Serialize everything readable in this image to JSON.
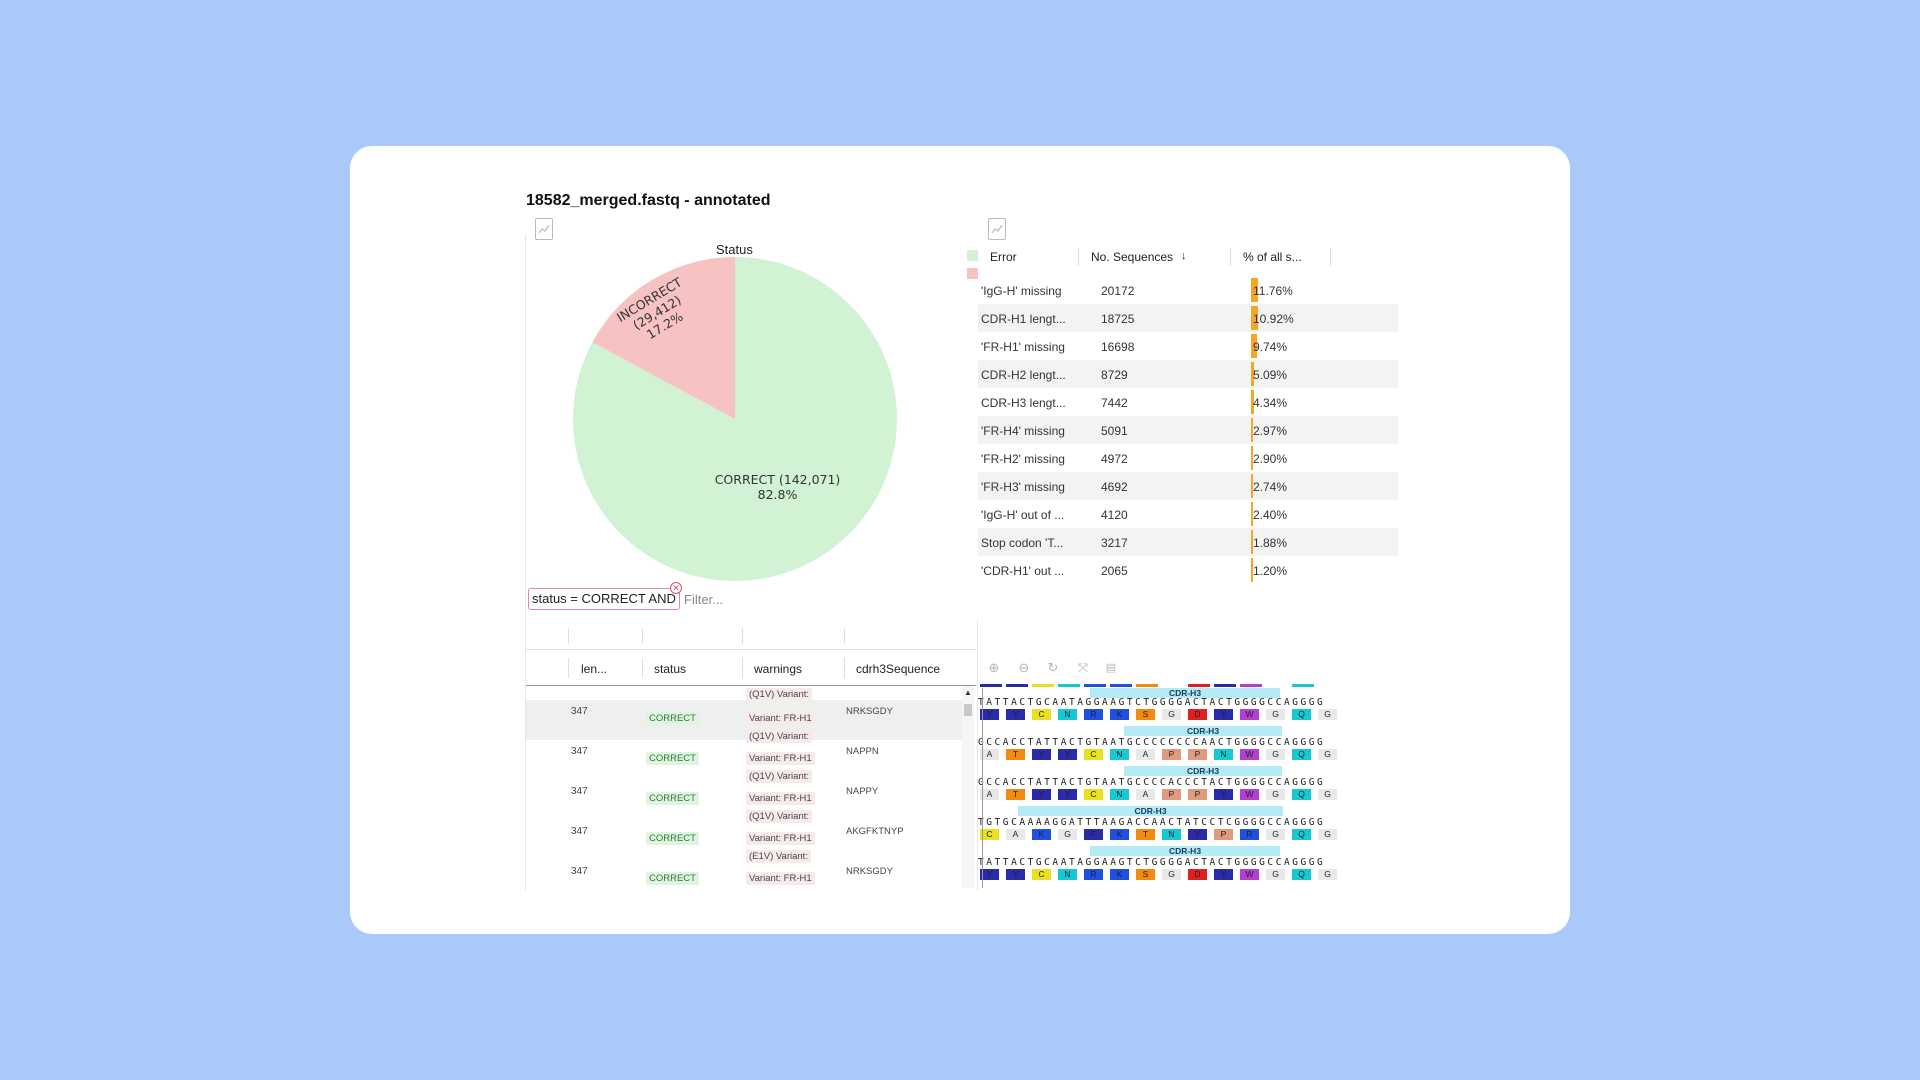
{
  "title": "18582_merged.fastq - annotated",
  "pie": {
    "title": "Status",
    "correct_label": "CORRECT (142,071)",
    "correct_pct": "82.8%",
    "incorrect_label": "INCORRECT (29,412)",
    "incorrect_pct": "17.2%",
    "correct_color": "#d2f2d4",
    "incorrect_color": "#f7c2c2"
  },
  "chart_data": {
    "type": "pie",
    "title": "Status",
    "categories": [
      "CORRECT",
      "INCORRECT"
    ],
    "values": [
      142071,
      29412
    ],
    "percentages": [
      82.8,
      17.2
    ]
  },
  "errors": {
    "headers": {
      "error": "Error",
      "count": "No. Sequences",
      "sort_icon": "↓",
      "pct": "% of all s..."
    },
    "rows": [
      {
        "error": "'IgG-H' missing",
        "count": "20172",
        "pct": "11.76%",
        "value": 11.76
      },
      {
        "error": "CDR-H1 lengt...",
        "count": "18725",
        "pct": "10.92%",
        "value": 10.92
      },
      {
        "error": "'FR-H1' missing",
        "count": "16698",
        "pct": "9.74%",
        "value": 9.74
      },
      {
        "error": "CDR-H2 lengt...",
        "count": "8729",
        "pct": "5.09%",
        "value": 5.09
      },
      {
        "error": "CDR-H3 lengt...",
        "count": "7442",
        "pct": "4.34%",
        "value": 4.34
      },
      {
        "error": "'FR-H4' missing",
        "count": "5091",
        "pct": "2.97%",
        "value": 2.97
      },
      {
        "error": "'FR-H2' missing",
        "count": "4972",
        "pct": "2.90%",
        "value": 2.9
      },
      {
        "error": "'FR-H3' missing",
        "count": "4692",
        "pct": "2.74%",
        "value": 2.74
      },
      {
        "error": "'IgG-H' out of ...",
        "count": "4120",
        "pct": "2.40%",
        "value": 2.4
      },
      {
        "error": "Stop codon 'T...",
        "count": "3217",
        "pct": "1.88%",
        "value": 1.88
      },
      {
        "error": "'CDR-H1' out ...",
        "count": "2065",
        "pct": "1.20%",
        "value": 1.2
      }
    ]
  },
  "filter": {
    "pill": "status = CORRECT AND",
    "placeholder": "Filter..."
  },
  "seqtable": {
    "headers": {
      "len": "len...",
      "status": "status",
      "warnings": "warnings",
      "cdr3": "cdrh3Sequence"
    },
    "first_warning": "(Q1V)   Variant:",
    "rows": [
      {
        "len": "347",
        "status": "CORRECT",
        "w1": "Variant: FR-H1",
        "w2": "(Q1V)   Variant:",
        "cdr3": "NRKSGDY"
      },
      {
        "len": "347",
        "status": "CORRECT",
        "w1": "Variant: FR-H1",
        "w2": "(Q1V)   Variant:",
        "cdr3": "NAPPN"
      },
      {
        "len": "347",
        "status": "CORRECT",
        "w1": "Variant: FR-H1",
        "w2": "(Q1V)   Variant:",
        "cdr3": "NAPPY"
      },
      {
        "len": "347",
        "status": "CORRECT",
        "w1": "Variant: FR-H1",
        "w2": "(E1V)   Variant:",
        "cdr3": "AKGFKTNYP"
      },
      {
        "len": "347",
        "status": "CORRECT",
        "w1": "Variant: FR-H1",
        "w2": "(Q1V)   Variant:",
        "cdr3": "NRKSGDY"
      }
    ]
  },
  "alignment": {
    "region_label": "CDR-H3",
    "rows": [
      {
        "nuc": "TATTACTGCAATAGGAAGTCTGGGGACTACTGGGGCCAGGGG",
        "aa": [
          "Y",
          "Y",
          "C",
          "N",
          "R",
          "K",
          "S",
          "G",
          "D",
          "Y",
          "W",
          "G",
          "Q",
          "G"
        ],
        "colors": [
          "#2b2ba8",
          "#2b2ba8",
          "#e8e020",
          "#18c8d0",
          "#2050e0",
          "#2050e0",
          "#f08a10",
          "#cccccc",
          "#e02020",
          "#2b2ba8",
          "#b040d0",
          "#cccccc",
          "#18c8d0",
          "#cccccc"
        ]
      },
      {
        "nuc": "GCCACCTATTACTGTAATGCCCCCCCCAACTGGGGCCAGGGG",
        "aa": [
          "A",
          "T",
          "Y",
          "Y",
          "C",
          "N",
          "A",
          "P",
          "P",
          "N",
          "W",
          "G",
          "Q",
          "G"
        ],
        "colors": [
          "#cccccc",
          "#f08a10",
          "#2b2ba8",
          "#2b2ba8",
          "#e8e020",
          "#18c8d0",
          "#cccccc",
          "#e09a80",
          "#e09a80",
          "#18c8d0",
          "#b040d0",
          "#cccccc",
          "#18c8d0",
          "#cccccc"
        ]
      },
      {
        "nuc": "GCCACCTATTACTGTAATGCCCCACCCTACTGGGGCCAGGGG",
        "aa": [
          "A",
          "T",
          "Y",
          "Y",
          "C",
          "N",
          "A",
          "P",
          "P",
          "Y",
          "W",
          "G",
          "Q",
          "G"
        ],
        "colors": [
          "#cccccc",
          "#f08a10",
          "#2b2ba8",
          "#2b2ba8",
          "#e8e020",
          "#18c8d0",
          "#cccccc",
          "#e09a80",
          "#e09a80",
          "#2b2ba8",
          "#b040d0",
          "#cccccc",
          "#18c8d0",
          "#cccccc"
        ]
      },
      {
        "nuc": "TGTGCAAAAGGATTTAAGACCAACTATCCTCGGGGCCAGGGG",
        "aa": [
          "C",
          "A",
          "K",
          "G",
          "F",
          "K",
          "T",
          "N",
          "Y",
          "P",
          "R",
          "G",
          "Q",
          "G"
        ],
        "colors": [
          "#e8e020",
          "#cccccc",
          "#2050e0",
          "#cccccc",
          "#2b2ba8",
          "#2050e0",
          "#f08a10",
          "#18c8d0",
          "#2b2ba8",
          "#e09a80",
          "#2050e0",
          "#cccccc",
          "#18c8d0",
          "#cccccc"
        ]
      },
      {
        "nuc": "TATTACTGCAATAGGAAGTCTGGGGACTACTGGGGCCAGGGG",
        "aa": [
          "Y",
          "Y",
          "C",
          "N",
          "R",
          "K",
          "S",
          "G",
          "D",
          "Y",
          "W",
          "G",
          "Q",
          "G"
        ],
        "colors": [
          "#2b2ba8",
          "#2b2ba8",
          "#e8e020",
          "#18c8d0",
          "#2050e0",
          "#2050e0",
          "#f08a10",
          "#cccccc",
          "#e02020",
          "#2b2ba8",
          "#b040d0",
          "#cccccc",
          "#18c8d0",
          "#cccccc"
        ]
      }
    ]
  }
}
